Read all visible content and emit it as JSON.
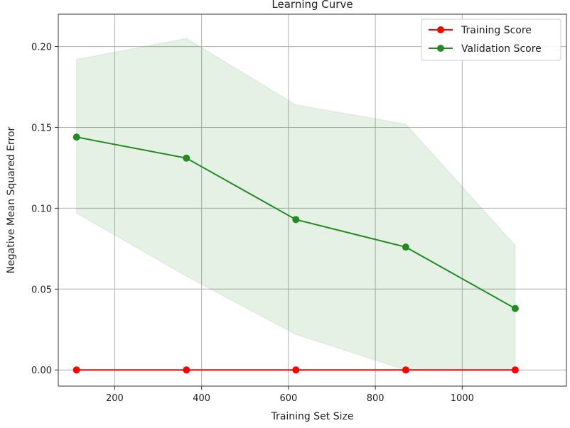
{
  "chart_data": {
    "type": "line",
    "title": "Learning Curve",
    "xlabel": "Training Set Size",
    "ylabel": "Negative Mean Squared Error",
    "xlim": [
      70,
      1240
    ],
    "ylim": [
      -0.01,
      0.22
    ],
    "x_ticks": [
      200,
      400,
      600,
      800,
      1000
    ],
    "x_tick_labels": [
      "200",
      "400",
      "600",
      "800",
      "1000"
    ],
    "y_ticks": [
      0.0,
      0.05,
      0.1,
      0.15,
      0.2
    ],
    "y_tick_labels": [
      "0.00",
      "0.05",
      "0.10",
      "0.15",
      "0.20"
    ],
    "grid": true,
    "legend_position": "top-right",
    "x": [
      112,
      365,
      617,
      870,
      1122
    ],
    "series": [
      {
        "name": "Training Score",
        "color": "#ff0000",
        "marker": "circle",
        "values": [
          0.0,
          0.0,
          0.0,
          0.0,
          0.0
        ],
        "band_lower": [
          0.0,
          0.0,
          0.0,
          0.0,
          0.0
        ],
        "band_upper": [
          0.0,
          0.0,
          0.0,
          0.0,
          0.0
        ]
      },
      {
        "name": "Validation Score",
        "color": "#228b22",
        "marker": "circle",
        "values": [
          0.144,
          0.131,
          0.093,
          0.076,
          0.038
        ],
        "band_lower": [
          0.097,
          0.058,
          0.022,
          0.0,
          0.0
        ],
        "band_upper": [
          0.192,
          0.205,
          0.164,
          0.152,
          0.077
        ],
        "band_color": "#228b22"
      }
    ]
  }
}
